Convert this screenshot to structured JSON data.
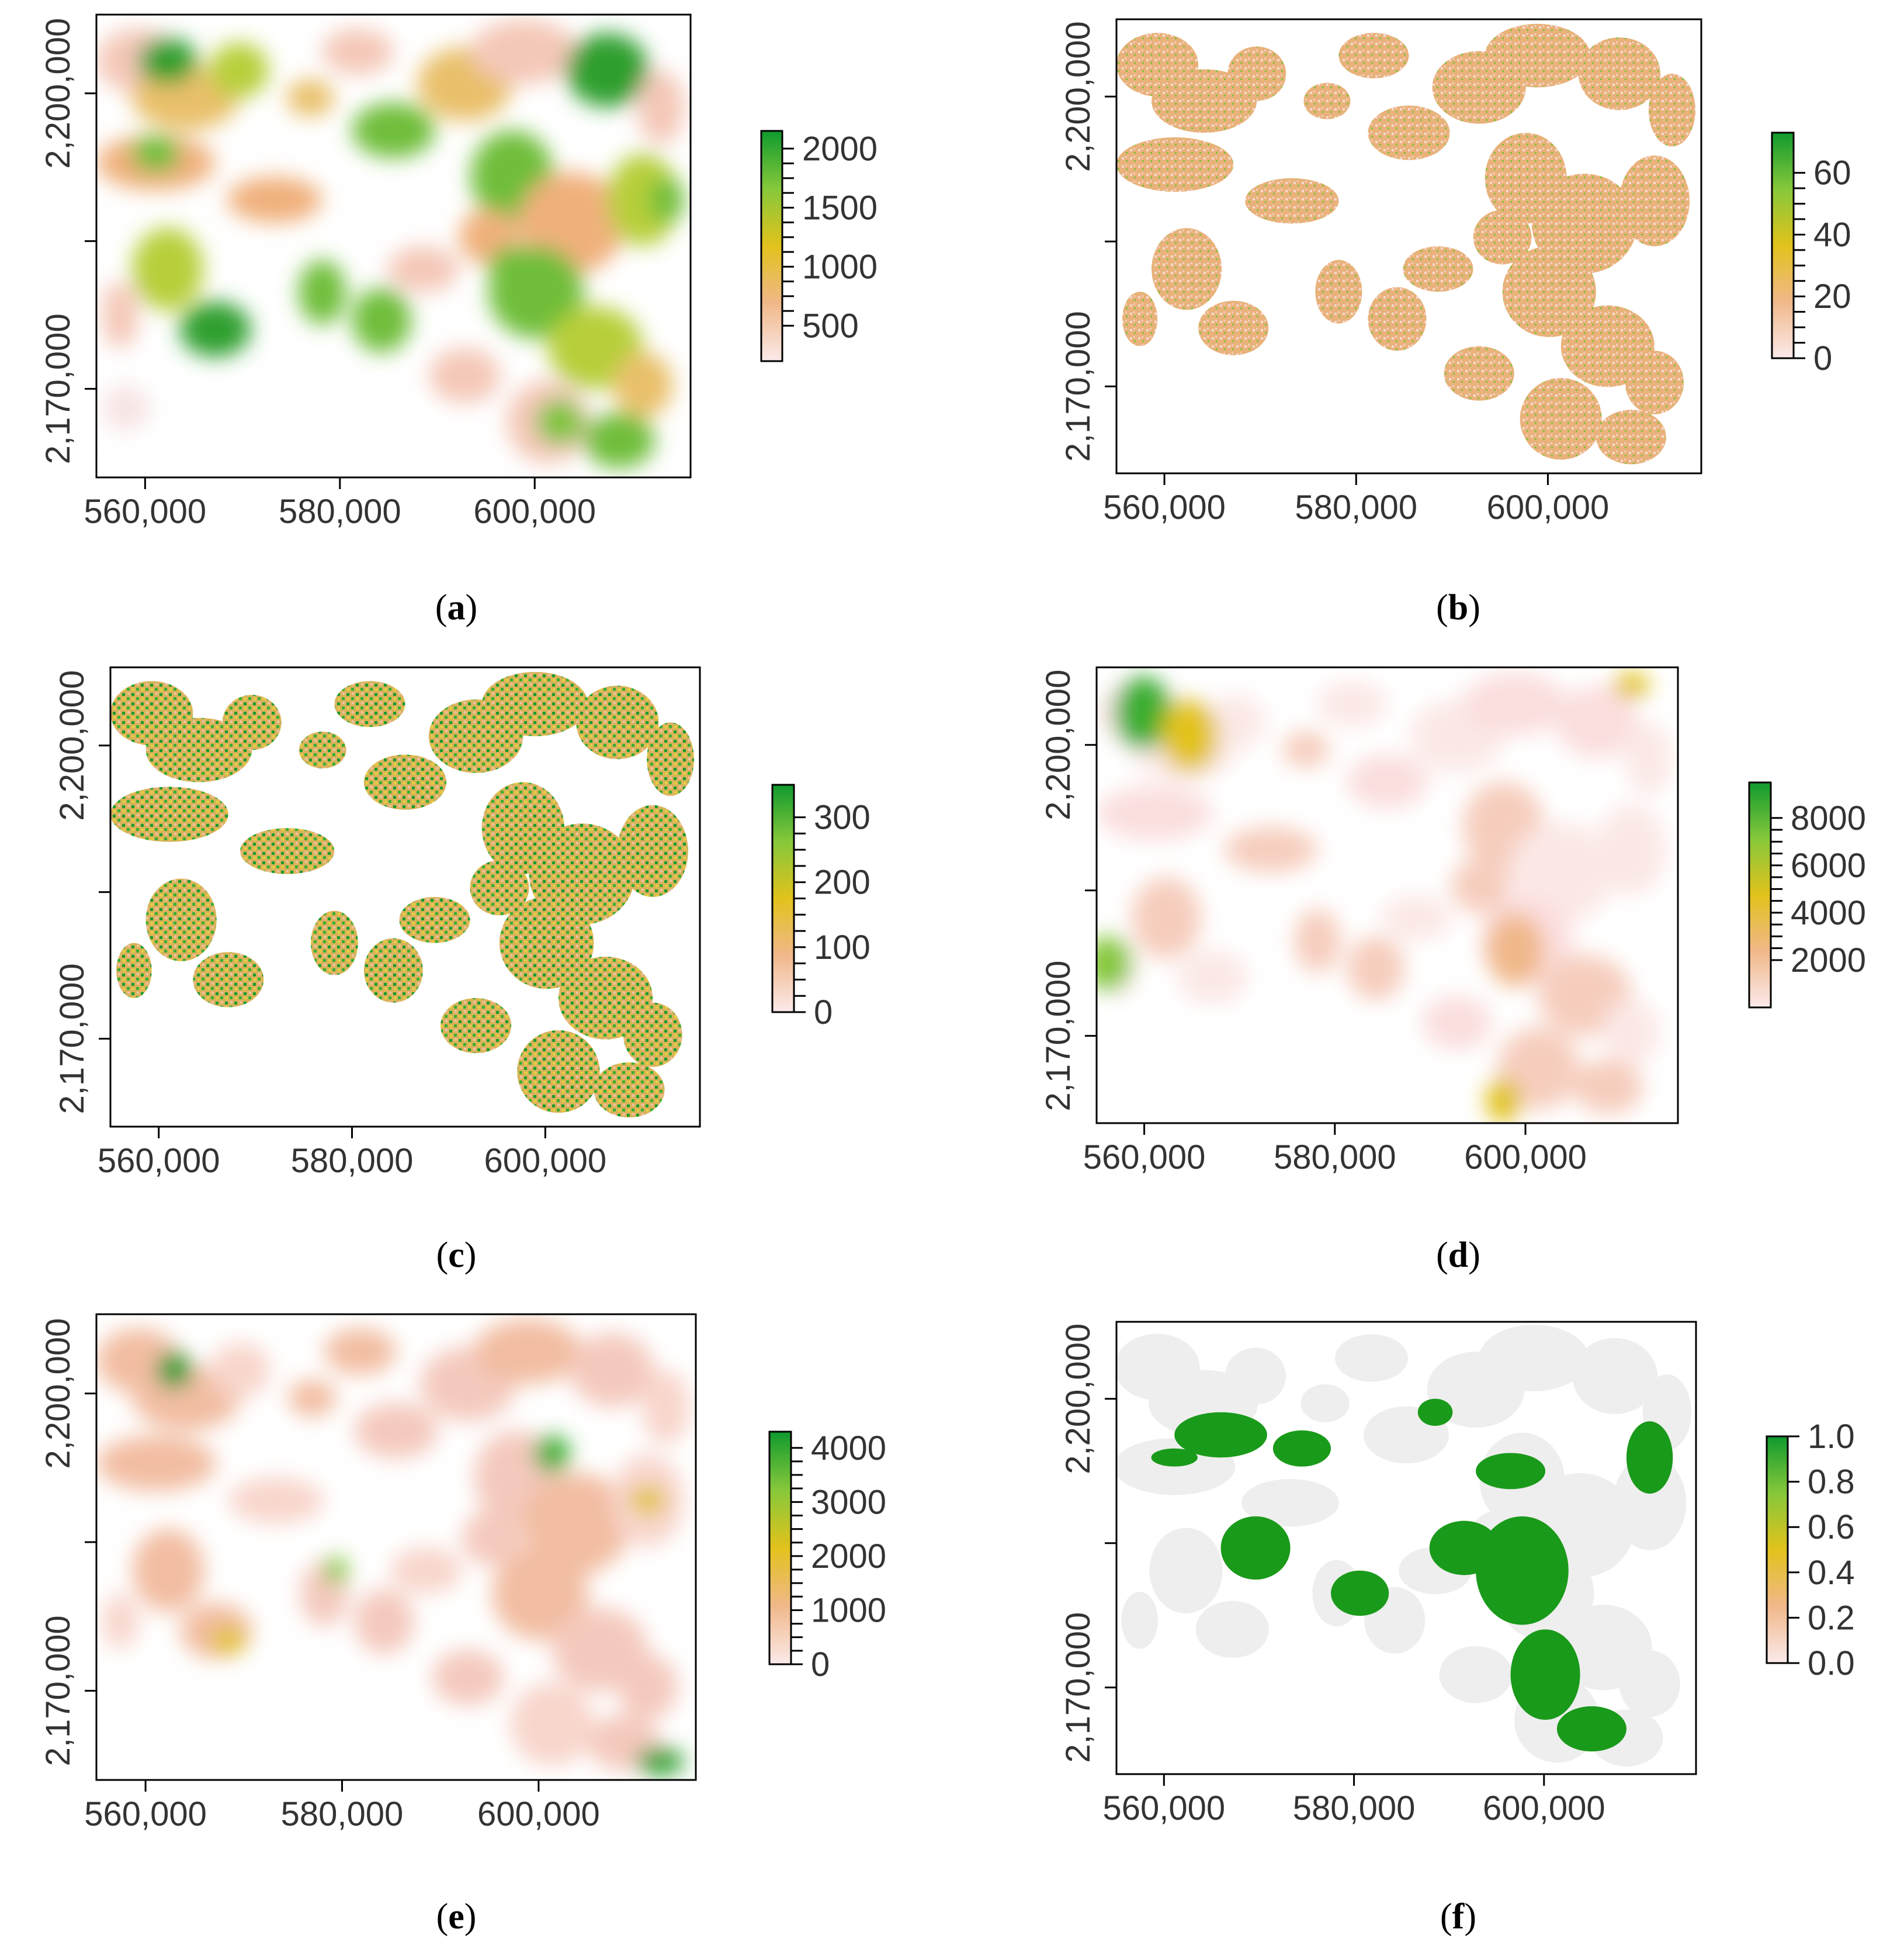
{
  "figure": {
    "x_ticks": [
      "560,000",
      "580,000",
      "600,000"
    ],
    "y_ticks": [
      "2,170,000",
      "2,200,000"
    ],
    "palette": {
      "low": "#fbe4e4",
      "mid_low": "#f0b88a",
      "mid": "#e2c21c",
      "mid_high": "#86c83a",
      "high": "#0f9a2e",
      "frame": "#000000",
      "nodata": "#ffffff",
      "mask_gray": "#eeeeee"
    }
  },
  "panels": [
    {
      "id": "a",
      "label": "(a)",
      "label_letter": "a",
      "legend_ticks": [
        "500",
        "1000",
        "1500",
        "2000"
      ],
      "legend_values": [
        500,
        1000,
        1500,
        2000
      ],
      "legend_range": [
        200,
        2150
      ]
    },
    {
      "id": "b",
      "label": "(b)",
      "label_letter": "b",
      "legend_ticks": [
        "0",
        "20",
        "40",
        "60"
      ],
      "legend_values": [
        0,
        20,
        40,
        60
      ],
      "legend_range": [
        0,
        73
      ]
    },
    {
      "id": "c",
      "label": "(c)",
      "label_letter": "c",
      "legend_ticks": [
        "0",
        "100",
        "200",
        "300"
      ],
      "legend_values": [
        0,
        100,
        200,
        300
      ],
      "legend_range": [
        0,
        350
      ]
    },
    {
      "id": "d",
      "label": "(d)",
      "label_letter": "d",
      "legend_ticks": [
        "2000",
        "4000",
        "6000",
        "8000"
      ],
      "legend_values": [
        2000,
        4000,
        6000,
        8000
      ],
      "legend_range": [
        0,
        9500
      ]
    },
    {
      "id": "e",
      "label": "(e)",
      "label_letter": "e",
      "legend_ticks": [
        "0",
        "1000",
        "2000",
        "3000",
        "4000"
      ],
      "legend_values": [
        0,
        1000,
        2000,
        3000,
        4000
      ],
      "legend_range": [
        0,
        4300
      ]
    },
    {
      "id": "f",
      "label": "(f)",
      "label_letter": "f",
      "legend_ticks": [
        "0.0",
        "0.2",
        "0.4",
        "0.6",
        "0.8",
        "1.0"
      ],
      "legend_values": [
        0,
        0.2,
        0.4,
        0.6,
        0.8,
        1.0
      ],
      "legend_range": [
        0,
        1.0
      ]
    }
  ]
}
